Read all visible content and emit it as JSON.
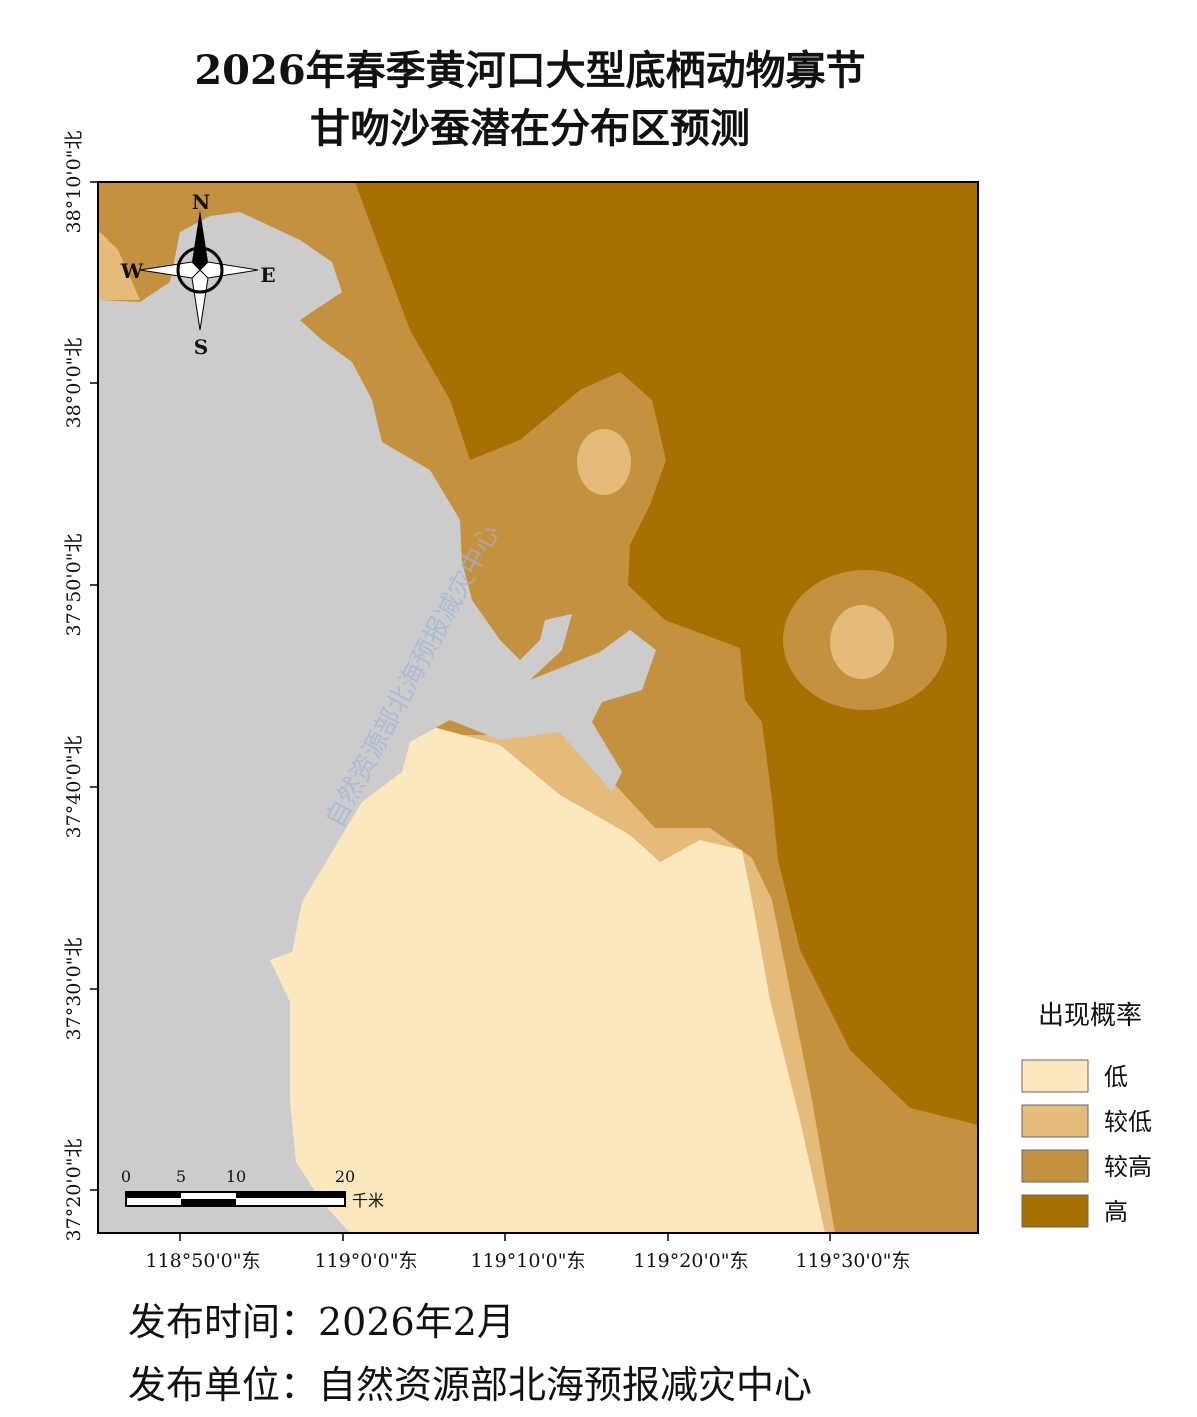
{
  "title": [
    "2026年春季黄河口大型底栖动物寡节",
    "甘吻沙蚕潜在分布区预测"
  ],
  "compass": {
    "north": "N",
    "south": "S",
    "east": "E",
    "west": "W"
  },
  "lat_labels": [
    "38°10'0\"北",
    "38°0'0\"北",
    "37°50'0\"北",
    "37°40'0\"北",
    "37°30'0\"北",
    "37°20'0\"北"
  ],
  "lon_labels": [
    "118°50'0\"东",
    "119°0'0\"东",
    "119°10'0\"东",
    "119°20'0\"东",
    "119°30'0\"东"
  ],
  "scale_bar": {
    "ticks": [
      0,
      5,
      10,
      20
    ],
    "unit": "千米"
  },
  "legend": {
    "title": "出现概率",
    "items": [
      {
        "label": "低",
        "color": "#fce8bf"
      },
      {
        "label": "较低",
        "color": "#e4bb79"
      },
      {
        "label": "较高",
        "color": "#c4923f"
      },
      {
        "label": "高",
        "color": "#a87000"
      }
    ]
  },
  "watermark": "自然资源部北海预报减灾中心",
  "footer": {
    "time": "发布时间：2026年2月",
    "publisher": "发布单位：自然资源部北海预报减灾中心"
  }
}
